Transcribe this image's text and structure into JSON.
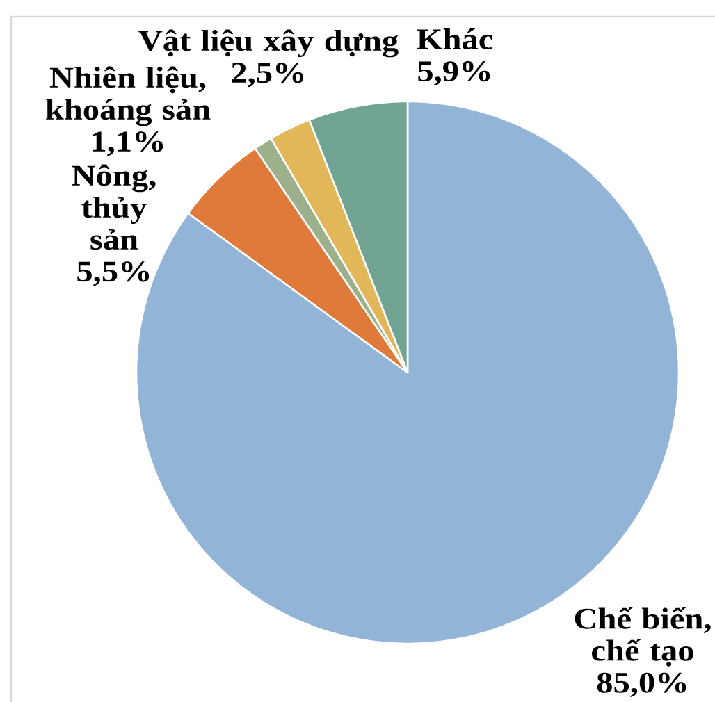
{
  "chart_data": {
    "type": "pie",
    "categories": [
      "Chế biến, chế tạo",
      "Nông, thủy sản",
      "Nhiên liệu, khoáng sản",
      "Vật liệu xây dựng",
      "Khác"
    ],
    "values": [
      85.0,
      5.5,
      1.1,
      2.5,
      5.9
    ],
    "colors": [
      "#92b4d7",
      "#e07a3a",
      "#9db08c",
      "#e2b75a",
      "#71a493"
    ],
    "value_labels": [
      "85,0%",
      "5,5%",
      "1,1%",
      "2,5%",
      "5,9%"
    ]
  }
}
